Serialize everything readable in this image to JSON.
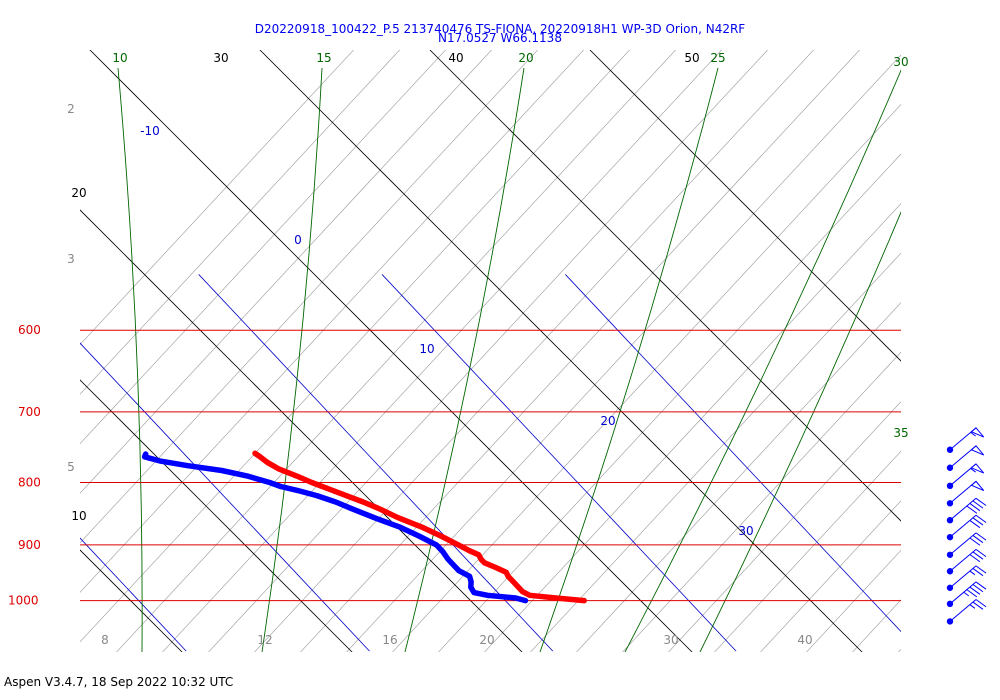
{
  "header": {
    "title_line1": "D20220918_100422_P.5 213740476 TS-FIONA, 20220918H1 WP-3D Orion, N42RF",
    "title_line2": "N17.0527 W66.1138"
  },
  "footer": {
    "text": "Aspen V3.4.7, 18 Sep 2022  10:32 UTC"
  },
  "colors": {
    "isobar": "#dd0000",
    "isotherm": "#0000cc",
    "temperature": "#ff0000",
    "dewpoint": "#0000ff",
    "mixing_ratio": "#006600",
    "dry_adiabat": "#000000",
    "moist_adiabat": "#999999",
    "wind": "#0000ff"
  },
  "chart_data": {
    "type": "skew-t log-p",
    "pressure_labels": [
      {
        "p": 600,
        "text": "600"
      },
      {
        "p": 700,
        "text": "700"
      },
      {
        "p": 800,
        "text": "800"
      },
      {
        "p": 900,
        "text": "900"
      },
      {
        "p": 1000,
        "text": "1000"
      }
    ],
    "isotherm_labels": [
      {
        "t": -10,
        "text": "-10"
      },
      {
        "t": 0,
        "text": "0"
      },
      {
        "t": 10,
        "text": "10"
      },
      {
        "t": 20,
        "text": "20"
      },
      {
        "t": 30,
        "text": "30"
      }
    ],
    "mixing_ratio_labels": [
      {
        "w": 10,
        "text": "10"
      },
      {
        "w": 15,
        "text": "15"
      },
      {
        "w": 20,
        "text": "20"
      },
      {
        "w": 25,
        "text": "25"
      },
      {
        "w": 30,
        "text": "30"
      },
      {
        "w": 35,
        "text": "35"
      }
    ],
    "dry_adiabat_labels": [
      {
        "theta": 30,
        "text": "30"
      },
      {
        "theta": 40,
        "text": "40"
      },
      {
        "theta": 50,
        "text": "50"
      },
      {
        "theta": 20,
        "text": "20"
      },
      {
        "theta": 10,
        "text": "10"
      }
    ],
    "moist_adiabat_labels": [
      {
        "v": 2,
        "text": "2"
      },
      {
        "v": 3,
        "text": "3"
      },
      {
        "v": 5,
        "text": "5"
      }
    ],
    "bottom_labels": [
      {
        "v": 8,
        "text": "8"
      },
      {
        "v": 12,
        "text": "12"
      },
      {
        "v": 16,
        "text": "16"
      },
      {
        "v": 20,
        "text": "20"
      },
      {
        "v": 30,
        "text": "30"
      },
      {
        "v": 40,
        "text": "40"
      }
    ],
    "temperature": [
      {
        "p": 1000,
        "t": 24.3
      },
      {
        "p": 995,
        "t": 22.9
      },
      {
        "p": 990,
        "t": 21.6
      },
      {
        "p": 983,
        "t": 21.4
      },
      {
        "p": 970,
        "t": 21.4
      },
      {
        "p": 955,
        "t": 21.4
      },
      {
        "p": 948,
        "t": 21.5
      },
      {
        "p": 940,
        "t": 21.2
      },
      {
        "p": 931,
        "t": 20.8
      },
      {
        "p": 925,
        "t": 20.8
      },
      {
        "p": 917,
        "t": 20.9
      },
      {
        "p": 910,
        "t": 20.6
      },
      {
        "p": 900,
        "t": 20.3
      },
      {
        "p": 885,
        "t": 19.8
      },
      {
        "p": 870,
        "t": 19.2
      },
      {
        "p": 855,
        "t": 18.4
      },
      {
        "p": 840,
        "t": 17.8
      },
      {
        "p": 830,
        "t": 17.3
      },
      {
        "p": 820,
        "t": 16.7
      },
      {
        "p": 810,
        "t": 16.1
      },
      {
        "p": 800,
        "t": 15.5
      },
      {
        "p": 790,
        "t": 15.0
      },
      {
        "p": 780,
        "t": 14.4
      },
      {
        "p": 770,
        "t": 14.1
      },
      {
        "p": 762,
        "t": 14.0
      },
      {
        "p": 757,
        "t": 13.9
      }
    ],
    "dewpoint": [
      {
        "p": 1000,
        "t": 21.1
      },
      {
        "p": 995,
        "t": 20.7
      },
      {
        "p": 990,
        "t": 19.3
      },
      {
        "p": 985,
        "t": 18.7
      },
      {
        "p": 975,
        "t": 18.8
      },
      {
        "p": 965,
        "t": 19.1
      },
      {
        "p": 955,
        "t": 19.3
      },
      {
        "p": 945,
        "t": 19.0
      },
      {
        "p": 935,
        "t": 19.0
      },
      {
        "p": 925,
        "t": 19.0
      },
      {
        "p": 912,
        "t": 19.1
      },
      {
        "p": 900,
        "t": 19.1
      },
      {
        "p": 885,
        "t": 18.6
      },
      {
        "p": 870,
        "t": 18.0
      },
      {
        "p": 855,
        "t": 17.1
      },
      {
        "p": 840,
        "t": 16.3
      },
      {
        "p": 830,
        "t": 15.8
      },
      {
        "p": 820,
        "t": 15.1
      },
      {
        "p": 812,
        "t": 14.3
      },
      {
        "p": 806,
        "t": 13.6
      },
      {
        "p": 800,
        "t": 13.2
      },
      {
        "p": 790,
        "t": 12.3
      },
      {
        "p": 782,
        "t": 11.2
      },
      {
        "p": 775,
        "t": 9.6
      },
      {
        "p": 768,
        "t": 8.3
      },
      {
        "p": 762,
        "t": 7.7
      },
      {
        "p": 758,
        "t": 7.9
      }
    ],
    "wind_barbs": [
      {
        "p": 752,
        "speed_kt": 55
      },
      {
        "p": 778,
        "speed_kt": 50
      },
      {
        "p": 805,
        "speed_kt": 55
      },
      {
        "p": 832,
        "speed_kt": 50
      },
      {
        "p": 859,
        "speed_kt": 40
      },
      {
        "p": 887,
        "speed_kt": 30
      },
      {
        "p": 917,
        "speed_kt": 30
      },
      {
        "p": 946,
        "speed_kt": 30
      },
      {
        "p": 976,
        "speed_kt": 25
      },
      {
        "p": 1006,
        "speed_kt": 45
      },
      {
        "p": 1040,
        "speed_kt": 25
      }
    ]
  }
}
